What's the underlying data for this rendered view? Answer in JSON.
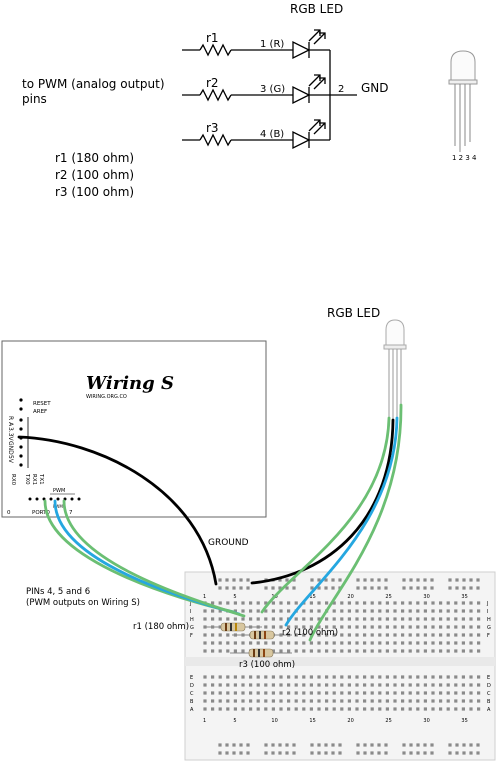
{
  "schematic": {
    "title": "RGB LED",
    "pwm_label_line1": "to PWM (analog output)",
    "pwm_label_line2": "pins",
    "resistors": [
      {
        "label": "r1",
        "pin": "1 (R)"
      },
      {
        "label": "r2",
        "pin": "3 (G)"
      },
      {
        "label": "r3",
        "pin": "4 (B)"
      }
    ],
    "gnd_pin": "2",
    "gnd_label": "GND",
    "values": [
      "r1 (180 ohm)",
      "r2 (100 ohm)",
      "r3 (100 ohm)"
    ],
    "led_pin_numbers": "1 2 3 4"
  },
  "wiring": {
    "rgb_led_label": "RGB LED",
    "board_logo": "Wiring S",
    "board_url": "WIRING.ORG.CO",
    "reset_label": "RESET",
    "aref_label": "AREF",
    "vert_labels": [
      "R A",
      "3.3V",
      "GND",
      "5V"
    ],
    "pin_labels": [
      "RX0",
      "TX0",
      "RX1",
      "TX1"
    ],
    "pwm_label": "PWM",
    "port_label": "PORT0",
    "port_start": "0",
    "port_end": "7",
    "ground_label": "GROUND",
    "pins_label_line1": "PINs 4, 5 and 6",
    "pins_label_line2": "(PWM outputs on Wiring S)",
    "r1_label": "r1 (180 ohm)",
    "r2_label": "r2 (100 ohm)",
    "r3_label": "r3 (100 ohm)",
    "bb_numbers": [
      "1",
      "5",
      "10",
      "15",
      "20",
      "25",
      "30",
      "35"
    ],
    "bb_rows_top": [
      "J",
      "I",
      "H",
      "G",
      "F"
    ],
    "bb_rows_bottom": [
      "E",
      "D",
      "C",
      "B",
      "A"
    ]
  },
  "colors": {
    "wire_black": "#000000",
    "wire_green": "#6bbf73",
    "wire_blue": "#25a7e0",
    "breadboard": "#f4f4f4",
    "hole": "#8a8a8a"
  }
}
